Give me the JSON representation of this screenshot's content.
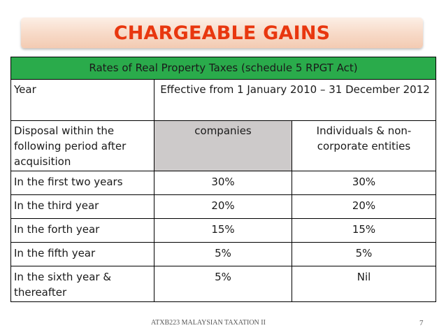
{
  "slide": {
    "title": "CHARGEABLE GAINS",
    "table": {
      "header": "Rates of Real Property Taxes (schedule 5 RPGT Act)",
      "year_label": "Year",
      "effective_period": "Effective from 1 January 2010 – 31 December 2012",
      "period_label": "Disposal within the following period after acquisition",
      "col_companies": "companies",
      "col_individuals": "Individuals & non-corporate entities",
      "rows": [
        {
          "period": "In the first two years",
          "companies": "30%",
          "individuals": "30%"
        },
        {
          "period": "In the third year",
          "companies": "20%",
          "individuals": "20%"
        },
        {
          "period": "In the forth year",
          "companies": "15%",
          "individuals": "15%"
        },
        {
          "period": "In the fifth year",
          "companies": "5%",
          "individuals": "5%"
        },
        {
          "period": "In the sixth year & thereafter",
          "companies": "5%",
          "individuals": "Nil"
        }
      ]
    },
    "footer": "ATXB223 MALAYSIAN TAXATION II",
    "page_number": "7"
  },
  "colors": {
    "title_text": "#e8370f",
    "title_band": "#f7d9c6",
    "header_fill": "#2aab4b",
    "grey_fill": "#cdcaca"
  }
}
